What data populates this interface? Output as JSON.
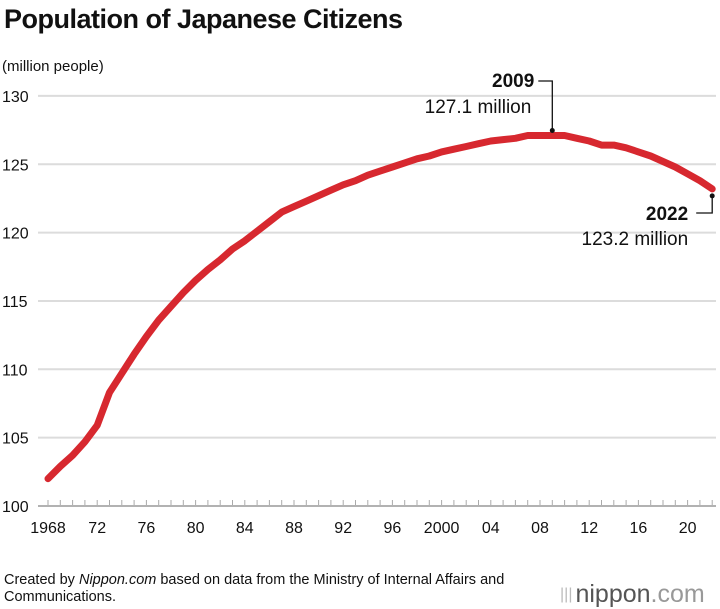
{
  "chart_data": {
    "type": "line",
    "title": "Population of Japanese Citizens",
    "ylabel": "(million people)",
    "xlabel": "",
    "ylim": [
      100,
      130
    ],
    "xlim": [
      1968,
      2022
    ],
    "grid": true,
    "yticks": [
      100,
      105,
      110,
      115,
      120,
      125,
      130
    ],
    "xtick_values": [
      1968,
      1972,
      1976,
      1980,
      1984,
      1988,
      1992,
      1996,
      2000,
      2004,
      2008,
      2012,
      2016,
      2020
    ],
    "xtick_labels": [
      "1968",
      "72",
      "76",
      "80",
      "84",
      "88",
      "92",
      "96",
      "2000",
      "04",
      "08",
      "12",
      "16",
      "20"
    ],
    "line_color": "#d7282f",
    "series": [
      {
        "x": [
          1968,
          1969,
          1970,
          1971,
          1972,
          1973,
          1974,
          1975,
          1976,
          1977,
          1978,
          1979,
          1980,
          1981,
          1982,
          1983,
          1984,
          1985,
          1986,
          1987,
          1988,
          1989,
          1990,
          1991,
          1992,
          1993,
          1994,
          1995,
          1996,
          1997,
          1998,
          1999,
          2000,
          2001,
          2002,
          2003,
          2004,
          2005,
          2006,
          2007,
          2008,
          2009,
          2010,
          2011,
          2012,
          2013,
          2014,
          2015,
          2016,
          2017,
          2018,
          2019,
          2020,
          2021,
          2022
        ],
        "values": [
          102.0,
          102.9,
          103.7,
          104.7,
          105.9,
          108.3,
          109.7,
          111.1,
          112.4,
          113.6,
          114.6,
          115.6,
          116.5,
          117.3,
          118.0,
          118.8,
          119.4,
          120.1,
          120.8,
          121.5,
          121.9,
          122.3,
          122.7,
          123.1,
          123.5,
          123.8,
          124.2,
          124.5,
          124.8,
          125.1,
          125.4,
          125.6,
          125.9,
          126.1,
          126.3,
          126.5,
          126.7,
          126.8,
          126.9,
          127.1,
          127.1,
          127.1,
          127.1,
          126.9,
          126.7,
          126.4,
          126.4,
          126.2,
          125.9,
          125.6,
          125.2,
          124.8,
          124.3,
          123.8,
          123.2
        ]
      }
    ],
    "annotations": [
      {
        "x": 2009,
        "y": 127.1,
        "year": "2009",
        "value": "127.1 million"
      },
      {
        "x": 2022,
        "y": 123.2,
        "year": "2022",
        "value": "123.2 million"
      }
    ]
  },
  "footer": {
    "prefix": "Created by ",
    "source_name": "Nippon.com",
    "suffix": " based on data from the Ministry of Internal Affairs and Communications."
  },
  "logo": {
    "main": "nippon",
    "dot": ".com"
  }
}
